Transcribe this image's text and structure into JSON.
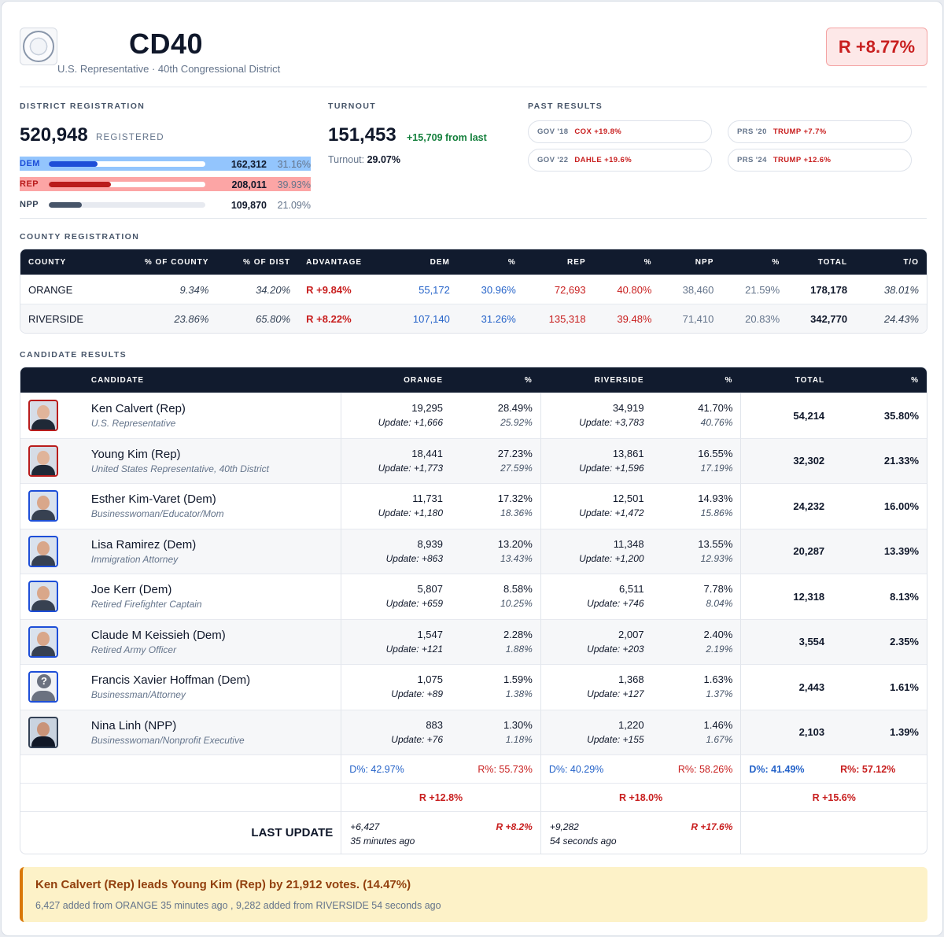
{
  "header": {
    "title": "CD40",
    "subtitle": "U.S. Representative · 40th Congressional District",
    "margin_badge": "R +8.77%"
  },
  "district_registration": {
    "label": "DISTRICT REGISTRATION",
    "total": "520,948",
    "unit": "REGISTERED",
    "parties": [
      {
        "label": "DEM",
        "count": "162,312",
        "pct": "31.16%",
        "share": 0.3116,
        "color": "#1d4ed8",
        "highlight": "#93c5fd"
      },
      {
        "label": "REP",
        "count": "208,011",
        "pct": "39.93%",
        "share": 0.3993,
        "color": "#b91c1c",
        "highlight": "#fca5a5"
      },
      {
        "label": "NPP",
        "count": "109,870",
        "pct": "21.09%",
        "share": 0.2109,
        "color": "#475569",
        "highlight": ""
      }
    ]
  },
  "turnout": {
    "label": "TURNOUT",
    "total": "151,453",
    "delta": "+15,709 from last",
    "pct_label": "Turnout:",
    "pct": "29.07%"
  },
  "past_results": {
    "label": "PAST RESULTS",
    "items": [
      {
        "race": "GOV '18",
        "result": "COX +19.8%"
      },
      {
        "race": "PRS '20",
        "result": "TRUMP +7.7%"
      },
      {
        "race": "GOV '22",
        "result": "DAHLE +19.6%"
      },
      {
        "race": "PRS '24",
        "result": "TRUMP +12.6%"
      }
    ]
  },
  "county_registration": {
    "label": "COUNTY REGISTRATION",
    "headers": [
      "COUNTY",
      "% OF COUNTY",
      "% OF DIST",
      "ADVANTAGE",
      "DEM",
      "%",
      "REP",
      "%",
      "NPP",
      "%",
      "TOTAL",
      "T/O"
    ],
    "rows": [
      {
        "county": "ORANGE",
        "pct_county": "9.34%",
        "pct_dist": "34.20%",
        "advantage": "R +9.84%",
        "dem": "55,172",
        "dem_pct": "30.96%",
        "rep": "72,693",
        "rep_pct": "40.80%",
        "npp": "38,460",
        "npp_pct": "21.59%",
        "total": "178,178",
        "turnout": "38.01%"
      },
      {
        "county": "RIVERSIDE",
        "pct_county": "23.86%",
        "pct_dist": "65.80%",
        "advantage": "R +8.22%",
        "dem": "107,140",
        "dem_pct": "31.26%",
        "rep": "135,318",
        "rep_pct": "39.48%",
        "npp": "71,410",
        "npp_pct": "20.83%",
        "total": "342,770",
        "turnout": "24.43%"
      }
    ]
  },
  "candidate_results": {
    "label": "CANDIDATE RESULTS",
    "headers": [
      "CANDIDATE",
      "ORANGE",
      "%",
      "RIVERSIDE",
      "%",
      "TOTAL",
      "%"
    ],
    "rows": [
      {
        "name": "Ken Calvert (Rep)",
        "title": "U.S. Representative",
        "party": "rep",
        "orange": "19,295",
        "orange_upd": "Update: +1,666",
        "orange_pct": "28.49%",
        "orange_pct2": "25.92%",
        "riv": "34,919",
        "riv_upd": "Update: +3,783",
        "riv_pct": "41.70%",
        "riv_pct2": "40.76%",
        "total": "54,214",
        "total_pct": "35.80%"
      },
      {
        "name": "Young Kim (Rep)",
        "title": "United States Representative, 40th District",
        "party": "rep",
        "orange": "18,441",
        "orange_upd": "Update: +1,773",
        "orange_pct": "27.23%",
        "orange_pct2": "27.59%",
        "riv": "13,861",
        "riv_upd": "Update: +1,596",
        "riv_pct": "16.55%",
        "riv_pct2": "17.19%",
        "total": "32,302",
        "total_pct": "21.33%"
      },
      {
        "name": "Esther Kim-Varet (Dem)",
        "title": "Businesswoman/Educator/Mom",
        "party": "dem",
        "orange": "11,731",
        "orange_upd": "Update: +1,180",
        "orange_pct": "17.32%",
        "orange_pct2": "18.36%",
        "riv": "12,501",
        "riv_upd": "Update: +1,472",
        "riv_pct": "14.93%",
        "riv_pct2": "15.86%",
        "total": "24,232",
        "total_pct": "16.00%"
      },
      {
        "name": "Lisa Ramirez (Dem)",
        "title": "Immigration Attorney",
        "party": "dem",
        "orange": "8,939",
        "orange_upd": "Update: +863",
        "orange_pct": "13.20%",
        "orange_pct2": "13.43%",
        "riv": "11,348",
        "riv_upd": "Update: +1,200",
        "riv_pct": "13.55%",
        "riv_pct2": "12.93%",
        "total": "20,287",
        "total_pct": "13.39%"
      },
      {
        "name": "Joe Kerr (Dem)",
        "title": "Retired Firefighter Captain",
        "party": "dem",
        "orange": "5,807",
        "orange_upd": "Update: +659",
        "orange_pct": "8.58%",
        "orange_pct2": "10.25%",
        "riv": "6,511",
        "riv_upd": "Update: +746",
        "riv_pct": "7.78%",
        "riv_pct2": "8.04%",
        "total": "12,318",
        "total_pct": "8.13%"
      },
      {
        "name": "Claude M Keissieh (Dem)",
        "title": "Retired Army Officer",
        "party": "dem",
        "orange": "1,547",
        "orange_upd": "Update: +121",
        "orange_pct": "2.28%",
        "orange_pct2": "1.88%",
        "riv": "2,007",
        "riv_upd": "Update: +203",
        "riv_pct": "2.40%",
        "riv_pct2": "2.19%",
        "total": "3,554",
        "total_pct": "2.35%"
      },
      {
        "name": "Francis Xavier Hoffman (Dem)",
        "title": "Businessman/Attorney",
        "party": "dem",
        "orange": "1,075",
        "orange_upd": "Update: +89",
        "orange_pct": "1.59%",
        "orange_pct2": "1.38%",
        "riv": "1,368",
        "riv_upd": "Update: +127",
        "riv_pct": "1.63%",
        "riv_pct2": "1.37%",
        "total": "2,443",
        "total_pct": "1.61%"
      },
      {
        "name": "Nina Linh (NPP)",
        "title": "Businesswoman/Nonprofit Executive",
        "party": "npp",
        "orange": "883",
        "orange_upd": "Update: +76",
        "orange_pct": "1.30%",
        "orange_pct2": "1.18%",
        "riv": "1,220",
        "riv_upd": "Update: +155",
        "riv_pct": "1.46%",
        "riv_pct2": "1.67%",
        "total": "2,103",
        "total_pct": "1.39%"
      }
    ],
    "summary": {
      "orange_d": "D%: 42.97%",
      "orange_r": "R%: 55.73%",
      "riv_d": "D%: 40.29%",
      "riv_r": "R%: 58.26%",
      "total_d": "D%: 41.49%",
      "total_r": "R%: 57.12%"
    },
    "lead": {
      "orange": "R +12.8%",
      "riv": "R +18.0%",
      "total": "R +15.6%"
    },
    "last_update": {
      "label": "LAST UPDATE",
      "orange_votes": "+6,427",
      "orange_time": "35 minutes ago",
      "orange_margin": "R +8.2%",
      "riv_votes": "+9,282",
      "riv_time": "54 seconds ago",
      "riv_margin": "R +17.6%"
    }
  },
  "banner": {
    "title": "Ken Calvert (Rep) leads Young Kim (Rep) by 21,912 votes. (14.47%)",
    "subtitle": "6,427 added from ORANGE 35 minutes ago , 9,282 added from RIVERSIDE 54 seconds ago"
  },
  "colors": {
    "rep": "#c81e1e",
    "dem": "#2563c9",
    "header_bg": "#111b2e",
    "banner_bg": "#fdf2c8"
  }
}
